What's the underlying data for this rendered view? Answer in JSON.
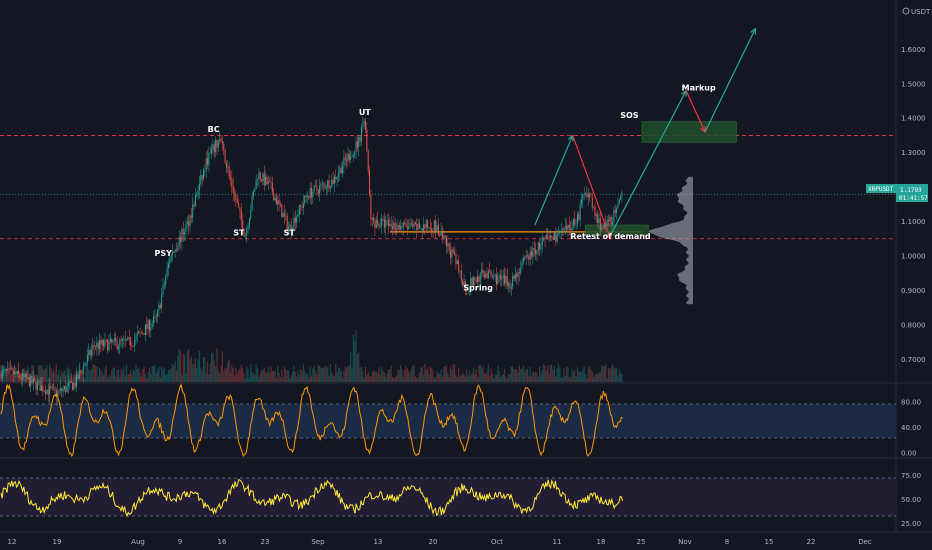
{
  "chart_data": {
    "type": "candlestick",
    "symbol": "XRPUSDT",
    "quote_unit": "USDT",
    "current_price": "1.1793",
    "countdown": "01:41:57",
    "x_tick_labels": [
      "12",
      "19",
      "Aug",
      "9",
      "16",
      "23",
      "Sep",
      "13",
      "20",
      "Oct",
      "11",
      "18",
      "25",
      "Nov",
      "8",
      "15",
      "22",
      "Dec"
    ],
    "price_axis": {
      "ticks": [
        "0.7000",
        "0.8000",
        "0.9000",
        "1.0000",
        "1.1000",
        "1.2000",
        "1.3000",
        "1.4000",
        "1.5000",
        "1.6000"
      ],
      "range": [
        0.64,
        1.72
      ]
    },
    "osc1_axis": {
      "ticks": [
        "80.00",
        "40.00",
        "0.00"
      ],
      "range": [
        -5,
        105
      ],
      "band": [
        20,
        80
      ]
    },
    "osc2_axis": {
      "ticks": [
        "75.00",
        "50.00",
        "25.00"
      ],
      "range": [
        18,
        90
      ],
      "band": [
        30,
        70
      ]
    },
    "annotations": [
      {
        "text": "PSY",
        "x": "2021-08-05",
        "y": 1.0
      },
      {
        "text": "BC",
        "x": "2021-08-13",
        "y": 1.36
      },
      {
        "text": "ST",
        "x": "2021-08-17",
        "y": 1.06
      },
      {
        "text": "ST",
        "x": "2021-08-25",
        "y": 1.06
      },
      {
        "text": "UT",
        "x": "2021-09-06",
        "y": 1.41
      },
      {
        "text": "Spring",
        "x": "2021-09-24",
        "y": 0.9
      },
      {
        "text": "Retest of demand",
        "x": "2021-10-15",
        "y": 1.05
      },
      {
        "text": "SOS",
        "x": "2021-10-18",
        "y": 1.4
      },
      {
        "text": "Markup",
        "x": "2021-10-29",
        "y": 1.48
      }
    ],
    "horizontal_levels": [
      {
        "price": 1.35,
        "style": "dashed",
        "color": "#f23645"
      },
      {
        "price": 1.05,
        "style": "dashed",
        "color": "#f23645"
      },
      {
        "price": 1.07,
        "style": "solid",
        "color": "#ff9800"
      },
      {
        "price": 1.1793,
        "style": "dotted",
        "color": "#26a69a"
      }
    ],
    "zones": [
      {
        "from": "2021-10-20",
        "to": "2021-11-04",
        "low": 1.33,
        "high": 1.39,
        "color": "#1e4d2b"
      },
      {
        "from": "2021-10-11",
        "to": "2021-10-21",
        "low": 1.06,
        "high": 1.09,
        "color": "#1e4d2b"
      }
    ],
    "projection_arrows": [
      {
        "points": [
          [
            "2021-10-03",
            1.09
          ],
          [
            "2021-10-09",
            1.35
          ]
        ],
        "color": "#26a69a"
      },
      {
        "points": [
          [
            "2021-10-09",
            1.35
          ],
          [
            "2021-10-15",
            1.05
          ]
        ],
        "color": "#f23645"
      },
      {
        "points": [
          [
            "2021-10-15",
            1.06
          ],
          [
            "2021-10-27",
            1.48
          ]
        ],
        "color": "#26a69a"
      },
      {
        "points": [
          [
            "2021-10-27",
            1.48
          ],
          [
            "2021-10-30",
            1.36
          ]
        ],
        "color": "#f23645"
      },
      {
        "points": [
          [
            "2021-10-30",
            1.36
          ],
          [
            "2021-11-07",
            1.66
          ]
        ],
        "color": "#26a69a"
      }
    ]
  }
}
